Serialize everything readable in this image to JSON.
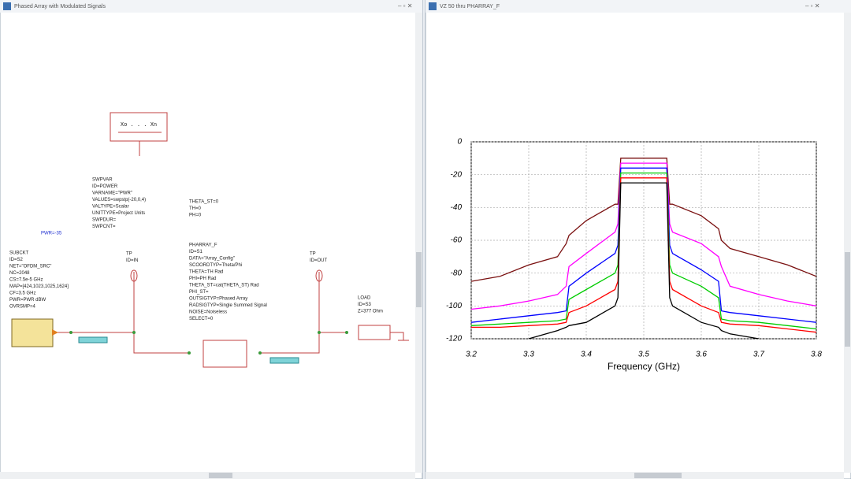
{
  "left_window": {
    "title": "Phased Array with Modulated Signals",
    "sweep_box": "Xo . . . Xn",
    "swpvar": [
      "SWPVAR",
      "ID=POWER",
      "VARNAME=\"PWR\"",
      "VALUES=swpstp(-20,0,4)",
      "VALTYPE=Scalar",
      "UNITTYPE=Project Units",
      "SWPDUR=",
      "SWPCNT="
    ],
    "theta": [
      "THETA_ST=0",
      "TH=0",
      "PH=0"
    ],
    "pwr": "PWR=-35",
    "subckt": [
      "SUBCKT",
      "ID=S2",
      "NET=\"OFDM_SRC\"",
      "NC=2048",
      "CS=7.5e-5 GHz",
      "MAP=[424,1023,1025,1624]",
      "CF=3.5 GHz",
      "PWR=PWR dBW",
      "OVRSMP=4"
    ],
    "tp_in": [
      "TP",
      "ID=IN"
    ],
    "tp_out": [
      "TP",
      "ID=OUT"
    ],
    "pharray": [
      "PHARRAY_F",
      "ID=S1",
      "DATA=\"Array_Config\"",
      "SCOORDTYP=Theta/Phi",
      "THETA=TH Rad",
      "PHI=PH Rad",
      "THETA_ST=cat(THETA_ST) Rad",
      "PHI_ST=",
      "OUTSIGTYP=Phased Array",
      "RADSIGTYP=Single Summed Signal",
      "NOISE=Noiseless",
      "SELECT=0"
    ],
    "load": [
      "LOAD",
      "ID=S3",
      "Z=377 Ohm"
    ]
  },
  "right_window": {
    "title": "VZ 50 thru PHARRAY_F"
  },
  "chart_data": {
    "type": "line",
    "x_label": "Frequency (GHz)",
    "x": [
      3.2,
      3.25,
      3.3,
      3.35,
      3.365,
      3.37,
      3.4,
      3.45,
      3.455,
      3.46,
      3.5,
      3.54,
      3.545,
      3.55,
      3.6,
      3.63,
      3.635,
      3.65,
      3.7,
      3.75,
      3.8
    ],
    "series": [
      {
        "color": "#7a1010",
        "values": [
          -85,
          -82,
          -75,
          -70,
          -62,
          -57,
          -48,
          -38,
          -38,
          -10,
          -10,
          -10,
          -38,
          -38,
          -45,
          -53,
          -60,
          -65,
          -70,
          -75,
          -82
        ]
      },
      {
        "color": "#ff00ff",
        "values": [
          -102,
          -100,
          -97,
          -93,
          -88,
          -76,
          -68,
          -55,
          -50,
          -13,
          -13,
          -13,
          -50,
          -55,
          -62,
          -70,
          -76,
          -88,
          -93,
          -97,
          -100
        ]
      },
      {
        "color": "#0000ff",
        "values": [
          -110,
          -108,
          -106,
          -104,
          -103,
          -88,
          -80,
          -68,
          -63,
          -16,
          -16,
          -16,
          -63,
          -68,
          -78,
          -85,
          -103,
          -104,
          -106,
          -108,
          -110
        ]
      },
      {
        "color": "#00cc00",
        "values": [
          -112,
          -111,
          -110,
          -109,
          -108,
          -96,
          -90,
          -80,
          -75,
          -19,
          -19,
          -19,
          -75,
          -80,
          -88,
          -95,
          -108,
          -109,
          -110,
          -112,
          -114
        ]
      },
      {
        "color": "#ff0000",
        "values": [
          -113,
          -113,
          -112,
          -111,
          -110,
          -104,
          -100,
          -90,
          -85,
          -22,
          -22,
          -22,
          -85,
          -90,
          -100,
          -104,
          -110,
          -111,
          -112,
          -114,
          -116
        ]
      },
      {
        "color": "#000000",
        "values": [
          null,
          null,
          -120,
          -115,
          -113,
          -112,
          -110,
          -100,
          -95,
          -25,
          -25,
          -25,
          -95,
          -100,
          -110,
          -113,
          -115,
          -117,
          -120,
          null,
          null
        ]
      }
    ],
    "xlim": [
      3.2,
      3.8
    ],
    "xticks": [
      3.2,
      3.3,
      3.4,
      3.5,
      3.6,
      3.7,
      3.8
    ],
    "ylim": [
      -120,
      0
    ],
    "yticks": [
      -120,
      -100,
      -80,
      -60,
      -40,
      -20,
      0
    ],
    "grid": true
  }
}
